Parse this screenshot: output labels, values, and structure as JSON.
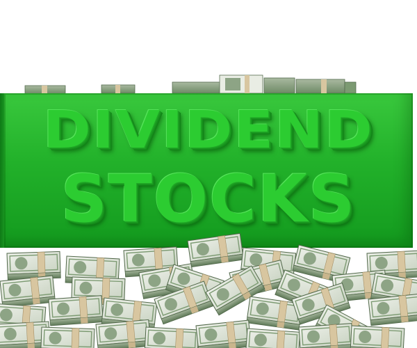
{
  "sign": {
    "line1": "DIVIDEND",
    "line2": "STOCKS"
  },
  "colors": {
    "sign_green": "#22b12a",
    "letter_green": "#2ccc31",
    "bill_green": "#7c9a72",
    "band_tan": "#d8c6a0",
    "background": "#ffffff"
  }
}
